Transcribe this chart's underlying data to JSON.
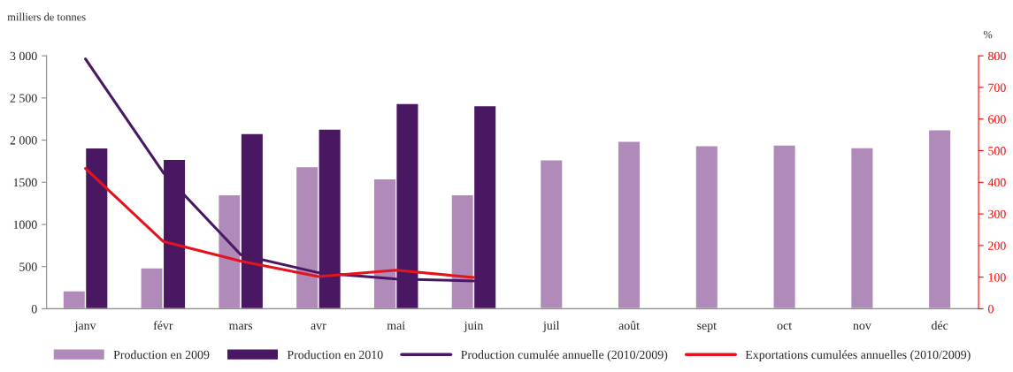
{
  "chart_data": {
    "type": "bar",
    "ylabel": "milliers de tonnes",
    "y2label": "%",
    "categories": [
      "janv",
      "févr",
      "mars",
      "avr",
      "mai",
      "juin",
      "juil",
      "août",
      "sept",
      "oct",
      "nov",
      "déc"
    ],
    "series": [
      {
        "name": "Production en 2009",
        "color": "#b08ab9",
        "values": [
          214,
          487,
          1352,
          1687,
          1543,
          1352,
          1766,
          1986,
          1935,
          1943,
          1911,
          2124
        ]
      },
      {
        "name": "Production en 2010",
        "color": "#4a1763",
        "values": [
          1909,
          1773,
          2080,
          2131,
          2435,
          2408,
          null,
          null,
          null,
          null,
          null,
          null
        ]
      },
      {
        "name": "Production cumulée annuelle (2010/2009)",
        "type": "line",
        "axis": "y2",
        "color": "#4a1763",
        "values": [
          790,
          431,
          171,
          114,
          94,
          88,
          null,
          null,
          null,
          null,
          null,
          null
        ]
      },
      {
        "name": "Exportations cumulées annuelles (2010/2009)",
        "type": "line",
        "axis": "y2",
        "color": "#e3141d",
        "values": [
          444,
          213,
          151,
          102,
          122,
          99,
          null,
          null,
          null,
          null,
          null,
          null
        ]
      }
    ],
    "ylim": [
      0,
      3000
    ],
    "yticks": [
      0,
      500,
      {
        "value": 1000,
        "label": "1000"
      },
      {
        "value": 1500,
        "label": "1500"
      },
      {
        "value": 2000,
        "label": "2 000"
      },
      {
        "value": 2500,
        "label": "2 500"
      },
      {
        "value": 3000,
        "label": "3 000"
      }
    ],
    "y2lim": [
      0,
      800
    ],
    "y2ticks": [
      0,
      100,
      200,
      300,
      400,
      500,
      600,
      700,
      800
    ],
    "grid": false,
    "legend": "bottom",
    "marker": "none",
    "line_style": "solid"
  }
}
